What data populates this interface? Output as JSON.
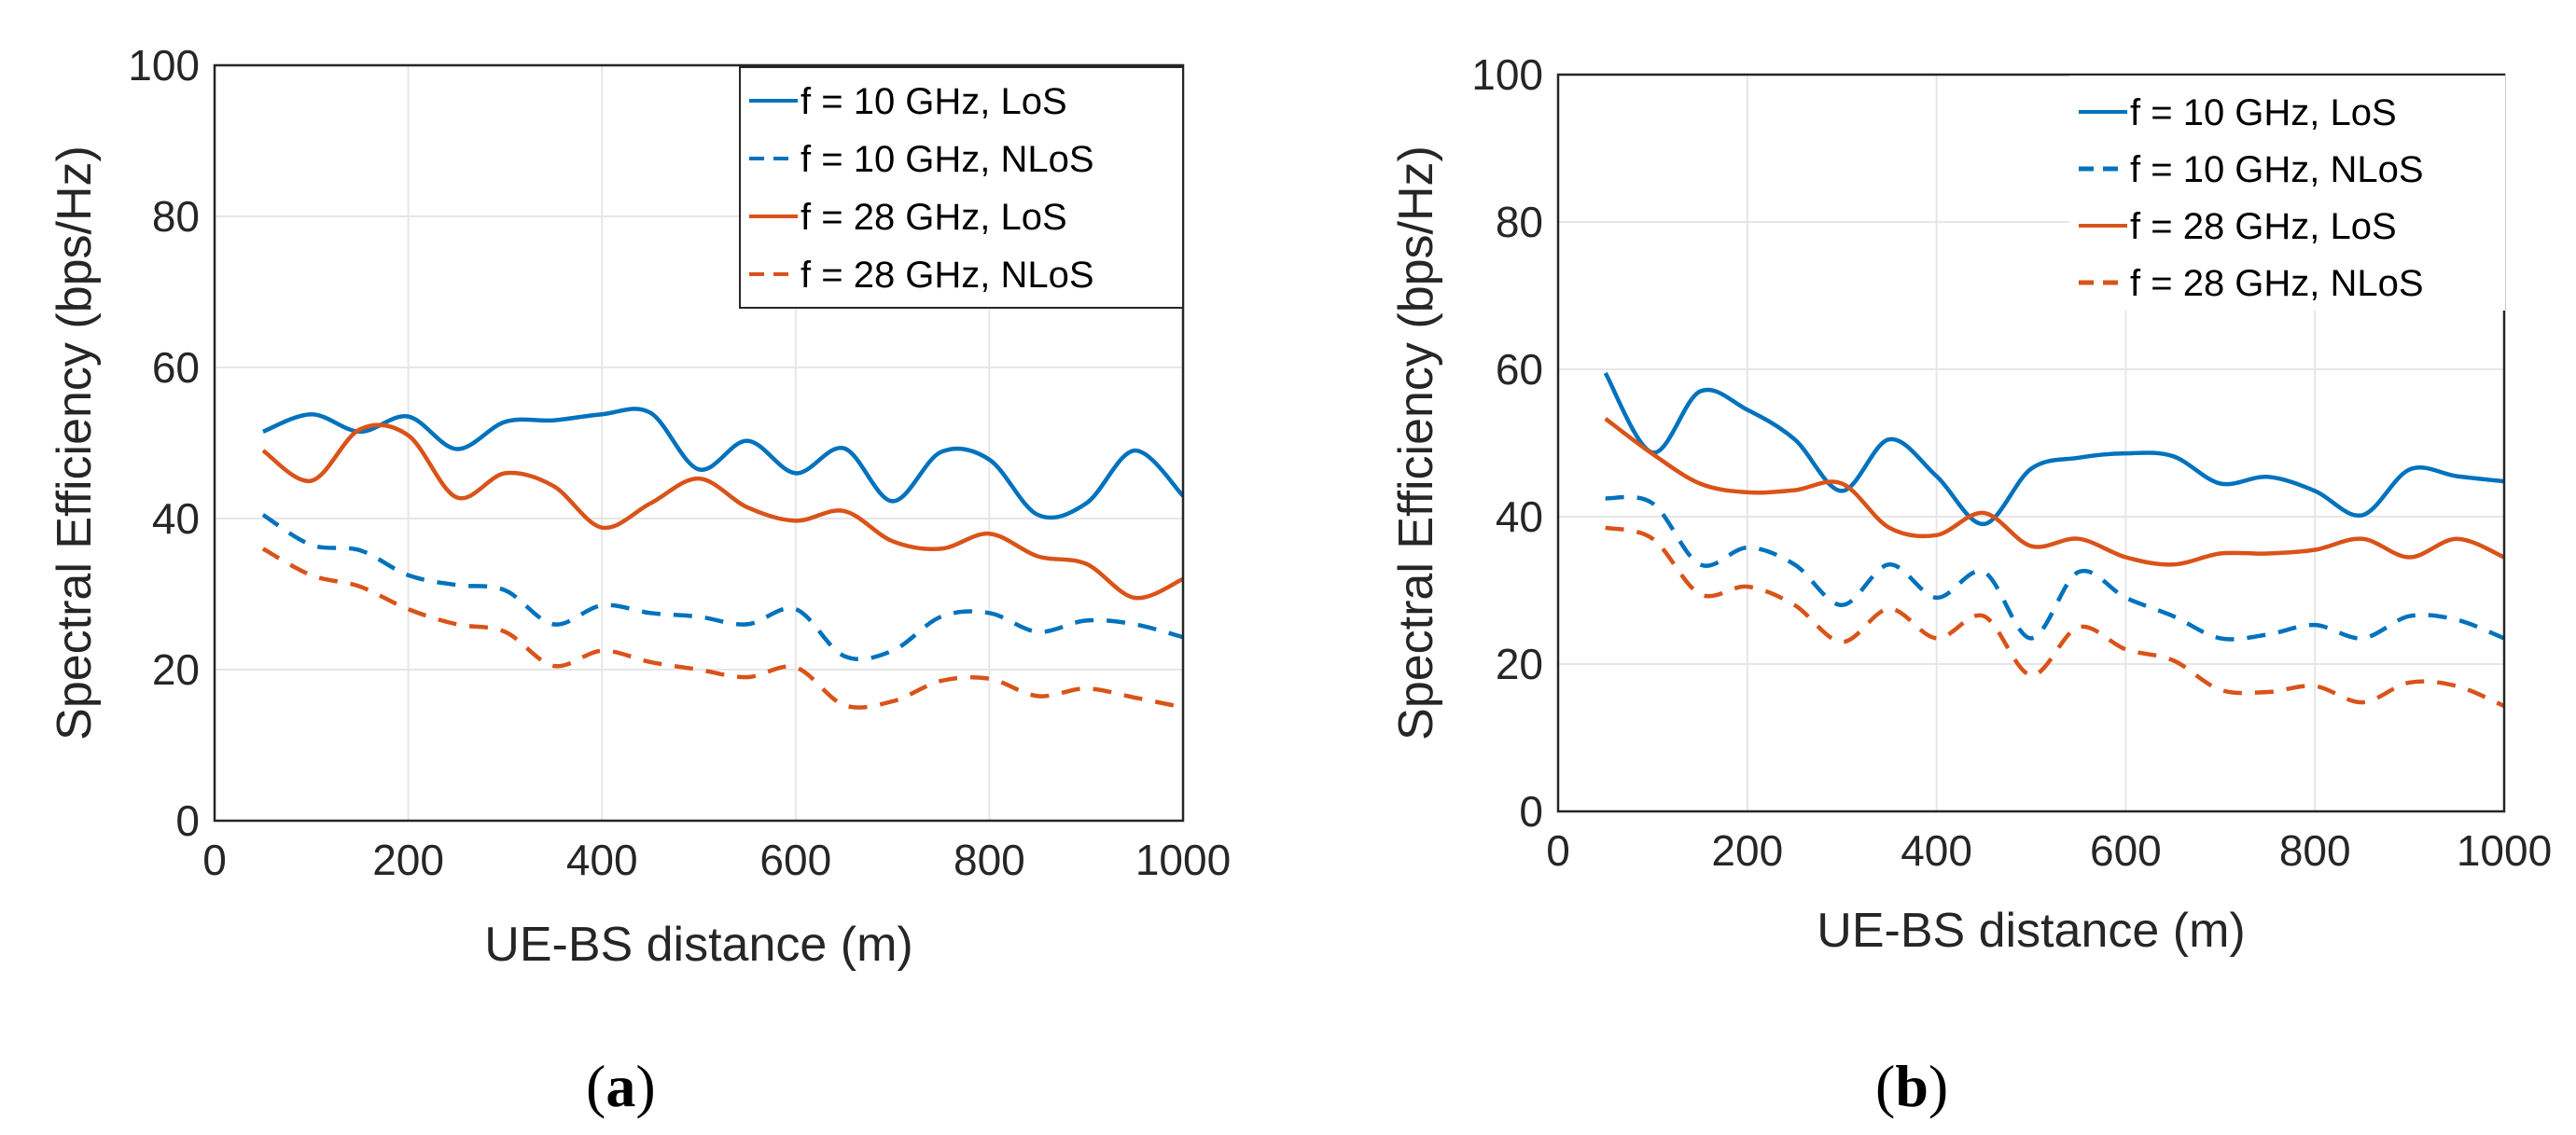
{
  "chart_data": [
    {
      "panel": "a",
      "type": "line",
      "xlabel": "UE-BS distance (m)",
      "ylabel": "Spectral Efficiency (bps/Hz)",
      "xlim": [
        0,
        1000
      ],
      "ylim": [
        0,
        100
      ],
      "xticks": [
        0,
        200,
        400,
        600,
        800,
        1000
      ],
      "yticks": [
        0,
        20,
        40,
        60,
        80,
        100
      ],
      "grid": true,
      "legend_position": "top-right",
      "x": [
        50,
        100,
        150,
        200,
        250,
        300,
        350,
        400,
        450,
        500,
        550,
        600,
        650,
        700,
        750,
        800,
        850,
        900,
        950,
        1000
      ],
      "series": [
        {
          "name": "f = 10 GHz, LoS",
          "color": "#0072BD",
          "dash": false,
          "values": [
            51.5,
            53.8,
            51.5,
            53.5,
            49.2,
            52.8,
            53,
            53.8,
            54,
            46.5,
            50.3,
            46,
            49.3,
            42.3,
            48.8,
            47.8,
            40.5,
            42,
            49,
            43
          ]
        },
        {
          "name": "f = 10 GHz, NLoS",
          "color": "#0072BD",
          "dash": true,
          "values": [
            40.5,
            36.5,
            35.8,
            32.5,
            31.2,
            30.5,
            26,
            28.5,
            27.5,
            27,
            26,
            28,
            21.8,
            22.5,
            27,
            27.5,
            25,
            26.5,
            26,
            24.3
          ]
        },
        {
          "name": "f = 28 GHz, LoS",
          "color": "#D95319",
          "dash": false,
          "values": [
            49,
            45,
            51.8,
            51,
            42.8,
            46,
            44.3,
            38.8,
            42,
            45.3,
            41.5,
            39.7,
            41,
            37,
            36,
            38,
            35,
            34,
            29.5,
            32
          ]
        },
        {
          "name": "f = 28 GHz, NLoS",
          "color": "#D95319",
          "dash": true,
          "values": [
            36,
            32.5,
            31,
            28,
            26,
            25,
            20.5,
            22.5,
            21,
            20,
            19,
            20.3,
            15.3,
            15.8,
            18.5,
            18.8,
            16.5,
            17.5,
            16.3,
            15
          ]
        }
      ]
    },
    {
      "panel": "b",
      "type": "line",
      "xlabel": "UE-BS distance (m)",
      "ylabel": "Spectral Efficiency (bps/Hz)",
      "xlim": [
        0,
        1000
      ],
      "ylim": [
        0,
        100
      ],
      "xticks": [
        0,
        200,
        400,
        600,
        800,
        1000
      ],
      "yticks": [
        0,
        20,
        40,
        60,
        80,
        100
      ],
      "grid": true,
      "legend_position": "top-right",
      "x": [
        50,
        100,
        150,
        200,
        250,
        300,
        350,
        400,
        450,
        500,
        550,
        600,
        650,
        700,
        750,
        800,
        850,
        900,
        950,
        1000
      ],
      "series": [
        {
          "name": "f = 10 GHz, LoS",
          "color": "#0072BD",
          "dash": false,
          "values": [
            59.5,
            48.7,
            57,
            54.5,
            50.5,
            43.5,
            50.5,
            45.5,
            39,
            46.5,
            48,
            48.6,
            48.2,
            44.5,
            45.4,
            43.5,
            40.2,
            46.4,
            45.5,
            44.8
          ]
        },
        {
          "name": "f = 10 GHz, NLoS",
          "color": "#0072BD",
          "dash": true,
          "values": [
            42.5,
            41.8,
            33.5,
            35.8,
            33.5,
            28,
            33.5,
            29,
            32.5,
            23.5,
            32.5,
            29,
            26.5,
            23.5,
            24,
            25.3,
            23.5,
            26.5,
            26,
            23.5
          ]
        },
        {
          "name": "f = 28 GHz, LoS",
          "color": "#D95319",
          "dash": false,
          "values": [
            53.3,
            48.5,
            44.5,
            43.3,
            43.6,
            44.5,
            38.5,
            37.5,
            40.5,
            36,
            37,
            34.5,
            33.5,
            35,
            35,
            35.5,
            37,
            34.5,
            37,
            34.5
          ]
        },
        {
          "name": "f = 28 GHz, NLoS",
          "color": "#D95319",
          "dash": true,
          "values": [
            38.5,
            37,
            29.5,
            30.5,
            28,
            23,
            27.5,
            23.5,
            26.5,
            18.5,
            25,
            22,
            20.5,
            16.5,
            16.2,
            17,
            14.8,
            17.5,
            17,
            14.3
          ]
        }
      ]
    }
  ],
  "captions": {
    "a": "a",
    "b": "b"
  }
}
